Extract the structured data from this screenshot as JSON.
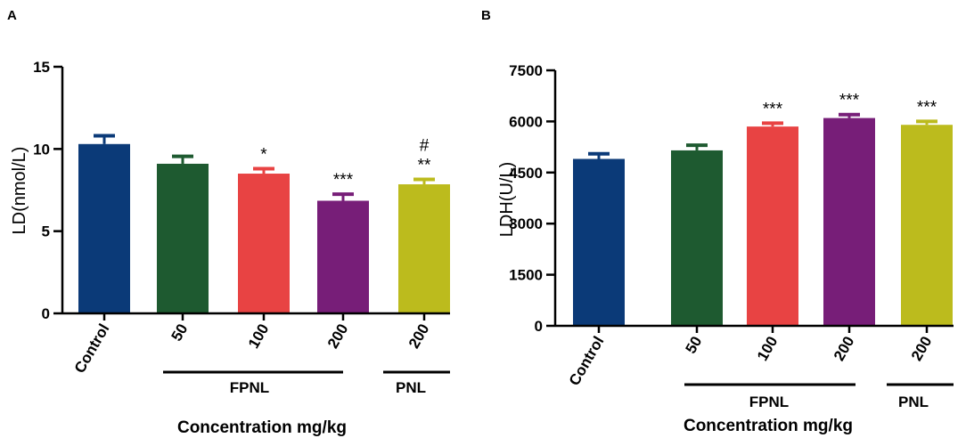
{
  "chart_data": [
    {
      "panel": "A",
      "type": "bar",
      "ylabel": "LD(nmol/L)",
      "xlabel": "Concentration mg/kg",
      "ylim": [
        0,
        15
      ],
      "yticks": [
        "0",
        "5",
        "10",
        "15"
      ],
      "categories": [
        "Control",
        "50",
        "100",
        "200",
        "200"
      ],
      "values": [
        10.3,
        9.1,
        8.5,
        6.85,
        7.85
      ],
      "errors": [
        0.5,
        0.45,
        0.3,
        0.4,
        0.3
      ],
      "colors": [
        "#0b3a78",
        "#1e5a30",
        "#e84343",
        "#771e78",
        "#bcbb1d"
      ],
      "annotations": [
        "",
        "",
        "*",
        "***",
        "**"
      ],
      "annotations_top": [
        "",
        "",
        "",
        "",
        "#"
      ],
      "groups": [
        {
          "label": "FPNL",
          "from": 1,
          "to": 3
        },
        {
          "label": "PNL",
          "from": 4,
          "to": 4
        }
      ]
    },
    {
      "panel": "B",
      "type": "bar",
      "ylabel": "LDH(U/L)",
      "xlabel": "Concentration mg/kg",
      "ylim": [
        0,
        7500
      ],
      "yticks": [
        "0",
        "1500",
        "3000",
        "4500",
        "6000",
        "7500"
      ],
      "categories": [
        "Control",
        "50",
        "100",
        "200",
        "200"
      ],
      "values": [
        4900,
        5150,
        5850,
        6100,
        5900
      ],
      "errors": [
        150,
        150,
        100,
        100,
        100
      ],
      "colors": [
        "#0b3a78",
        "#1e5a30",
        "#e84343",
        "#771e78",
        "#bcbb1d"
      ],
      "annotations": [
        "",
        "",
        "***",
        "***",
        "***"
      ],
      "annotations_top": [
        "",
        "",
        "",
        "",
        ""
      ],
      "groups": [
        {
          "label": "FPNL",
          "from": 1,
          "to": 3
        },
        {
          "label": "PNL",
          "from": 4,
          "to": 4
        }
      ]
    }
  ]
}
